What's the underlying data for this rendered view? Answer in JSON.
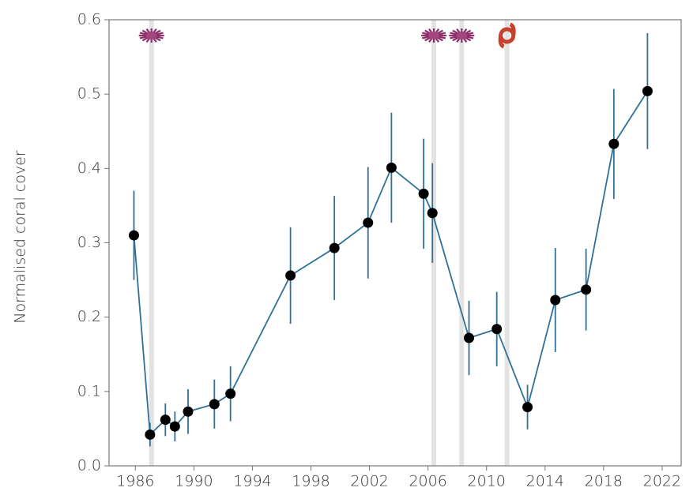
{
  "chart_data": {
    "type": "errorline",
    "ylabel": "Normalised coral cover",
    "x": [
      1985.9,
      1987.0,
      1988.05,
      1988.7,
      1989.6,
      1991.4,
      1992.5,
      1996.6,
      1999.6,
      2001.9,
      2003.5,
      2005.7,
      2006.3,
      2008.8,
      2010.7,
      2012.8,
      2014.7,
      2016.8,
      2018.7,
      2021.0
    ],
    "series": [
      {
        "color": "#2f7197",
        "marker_color": "#000000",
        "values": [
          0.31,
          0.042,
          0.062,
          0.053,
          0.073,
          0.083,
          0.097,
          0.256,
          0.293,
          0.327,
          0.401,
          0.366,
          0.34,
          0.172,
          0.184,
          0.079,
          0.223,
          0.237,
          0.433,
          0.504
        ],
        "errors": [
          0.06,
          0.016,
          0.022,
          0.02,
          0.03,
          0.033,
          0.037,
          0.065,
          0.07,
          0.075,
          0.074,
          0.074,
          0.067,
          0.05,
          0.05,
          0.03,
          0.07,
          0.055,
          0.074,
          0.078
        ]
      }
    ],
    "disturbances": [
      {
        "x": 1987.1,
        "kind": "starfish"
      },
      {
        "x": 2006.4,
        "kind": "starfish"
      },
      {
        "x": 2008.3,
        "kind": "starfish"
      },
      {
        "x": 2011.4,
        "kind": "cyclone"
      }
    ],
    "xlim": [
      1984.2,
      2023.3
    ],
    "xticks": [
      1986,
      1990,
      1994,
      1998,
      2002,
      2006,
      2010,
      2014,
      2018,
      2022
    ],
    "ylim": [
      0,
      0.6
    ],
    "yticks": [
      {
        "value": 0,
        "label": "0.0"
      },
      0.1,
      0.2,
      0.3,
      0.4,
      0.5,
      0.6
    ]
  }
}
